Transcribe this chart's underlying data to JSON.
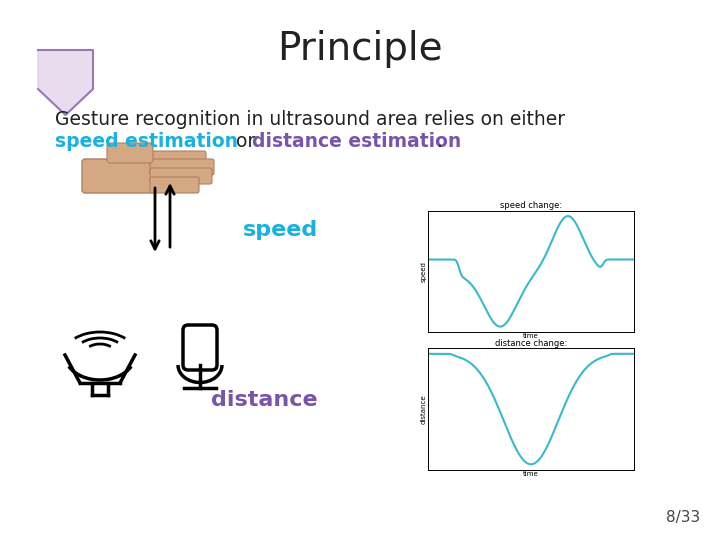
{
  "title": "Principle",
  "title_fontsize": 28,
  "bg_color": "#ffffff",
  "text1": "Gesture recognition in ultrasound area relies on either",
  "text1_fontsize": 13.5,
  "text1_color": "#222222",
  "speed_label_text": "speed estimation",
  "speed_label_color": "#1ab0e0",
  "or_text": " or ",
  "distance_label_text": "distance estimation",
  "distance_label_color": "#7755aa",
  "dot_text": ".",
  "line2_fontsize": 13.5,
  "speed_word_color": "#1ab0e0",
  "speed_word_fontsize": 16,
  "distance_word_color": "#7755aa",
  "distance_word_fontsize": 16,
  "page_number": "8/33",
  "page_fontsize": 11,
  "graph_line_color": "#3ab8cc",
  "graph_title_fontsize": 6,
  "graph_label_fontsize": 5
}
